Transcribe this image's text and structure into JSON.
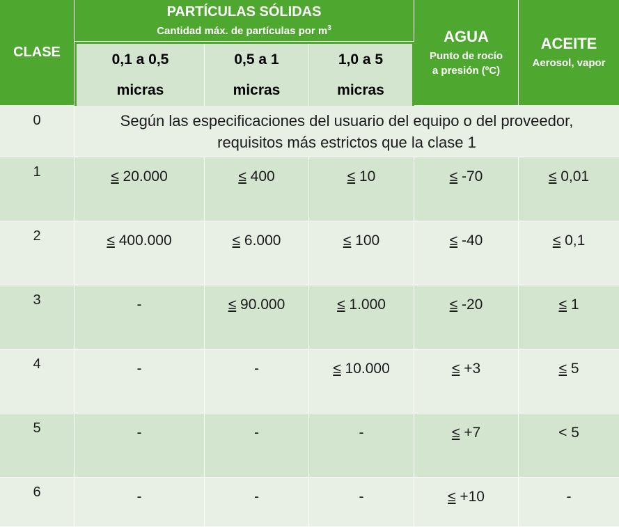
{
  "header": {
    "clase": "CLASE",
    "particulas_title": "PARTÍCULAS SÓLIDAS",
    "particulas_sub": "Cantidad máx. de partículas por m",
    "particulas_sup": "3",
    "sizes": [
      {
        "line1": "0,1 a 0,5",
        "line2": "micras"
      },
      {
        "line1": "0,5 a 1",
        "line2": "micras"
      },
      {
        "line1": "1,0 a 5",
        "line2": "micras"
      }
    ],
    "agua_title": "AGUA",
    "agua_sub1": "Punto de rocío",
    "agua_sub2": "a presión (ºC)",
    "aceite_title": "ACEITE",
    "aceite_sub": "Aerosol, vapor"
  },
  "class0": {
    "clase": "0",
    "line1": "Según las especificaciones del usuario del equipo o del proveedor,",
    "line2": "requisitos más estrictos que la clase 1"
  },
  "rows": [
    {
      "clase": "1",
      "c1": {
        "s": "≤",
        "v": " 20.000"
      },
      "c2": {
        "s": "≤",
        "v": " 400"
      },
      "c3": {
        "s": "≤",
        "v": " 10"
      },
      "agua": {
        "s": "≤",
        "v": " -70"
      },
      "aceite": {
        "s": "≤",
        "v": " 0,01"
      }
    },
    {
      "clase": "2",
      "c1": {
        "s": "≤",
        "v": " 400.000"
      },
      "c2": {
        "s": "≤",
        "v": " 6.000"
      },
      "c3": {
        "s": "≤",
        "v": " 100"
      },
      "agua": {
        "s": "≤",
        "v": " -40"
      },
      "aceite": {
        "s": "≤",
        "v": " 0,1"
      }
    },
    {
      "clase": "3",
      "c1": {
        "s": "",
        "v": "-"
      },
      "c2": {
        "s": "≤",
        "v": " 90.000"
      },
      "c3": {
        "s": "≤",
        "v": " 1.000"
      },
      "agua": {
        "s": "≤",
        "v": " -20"
      },
      "aceite": {
        "s": "≤",
        "v": " 1"
      }
    },
    {
      "clase": "4",
      "c1": {
        "s": "",
        "v": "-"
      },
      "c2": {
        "s": "",
        "v": "-"
      },
      "c3": {
        "s": "≤",
        "v": " 10.000"
      },
      "agua": {
        "s": "≤",
        "v": " +3"
      },
      "aceite": {
        "s": "≤",
        "v": " 5"
      }
    },
    {
      "clase": "5",
      "c1": {
        "s": "",
        "v": "-"
      },
      "c2": {
        "s": "",
        "v": "-"
      },
      "c3": {
        "s": "",
        "v": "-"
      },
      "agua": {
        "s": "≤",
        "v": " +7"
      },
      "aceite": {
        "s": "",
        "v": "< 5"
      }
    },
    {
      "clase": "6",
      "c1": {
        "s": "",
        "v": "-"
      },
      "c2": {
        "s": "",
        "v": "-"
      },
      "c3": {
        "s": "",
        "v": "-"
      },
      "agua": {
        "s": "≤",
        "v": " +10"
      },
      "aceite": {
        "s": "",
        "v": "-"
      }
    }
  ]
}
